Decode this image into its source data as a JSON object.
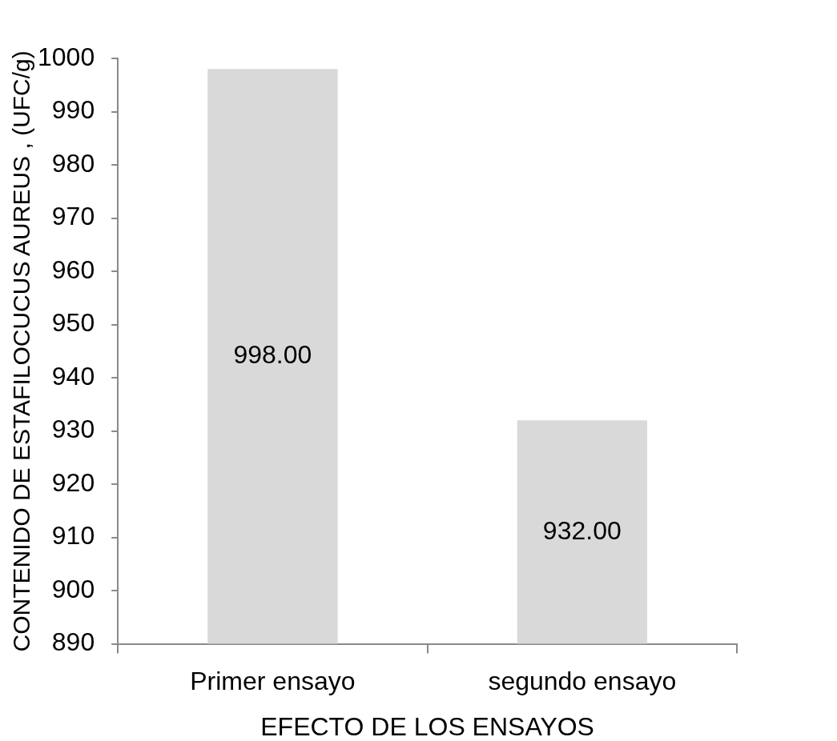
{
  "chart_data": {
    "type": "bar",
    "categories": [
      "Primer ensayo",
      "segundo ensayo"
    ],
    "values": [
      998,
      932
    ],
    "color": "#d9d9d9",
    "value_labels": [
      "998.00",
      "932.00"
    ],
    "xlabel": "EFECTO DE LOS ENSAYOS",
    "ylabel": "CONTENIDO DE ESTAFILOCUCUS AUREUS , (UFC/g)",
    "ylim": [
      890,
      1000
    ],
    "yticks": [
      890,
      900,
      910,
      920,
      930,
      940,
      950,
      960,
      970,
      980,
      990,
      1000
    ],
    "grid": false
  }
}
